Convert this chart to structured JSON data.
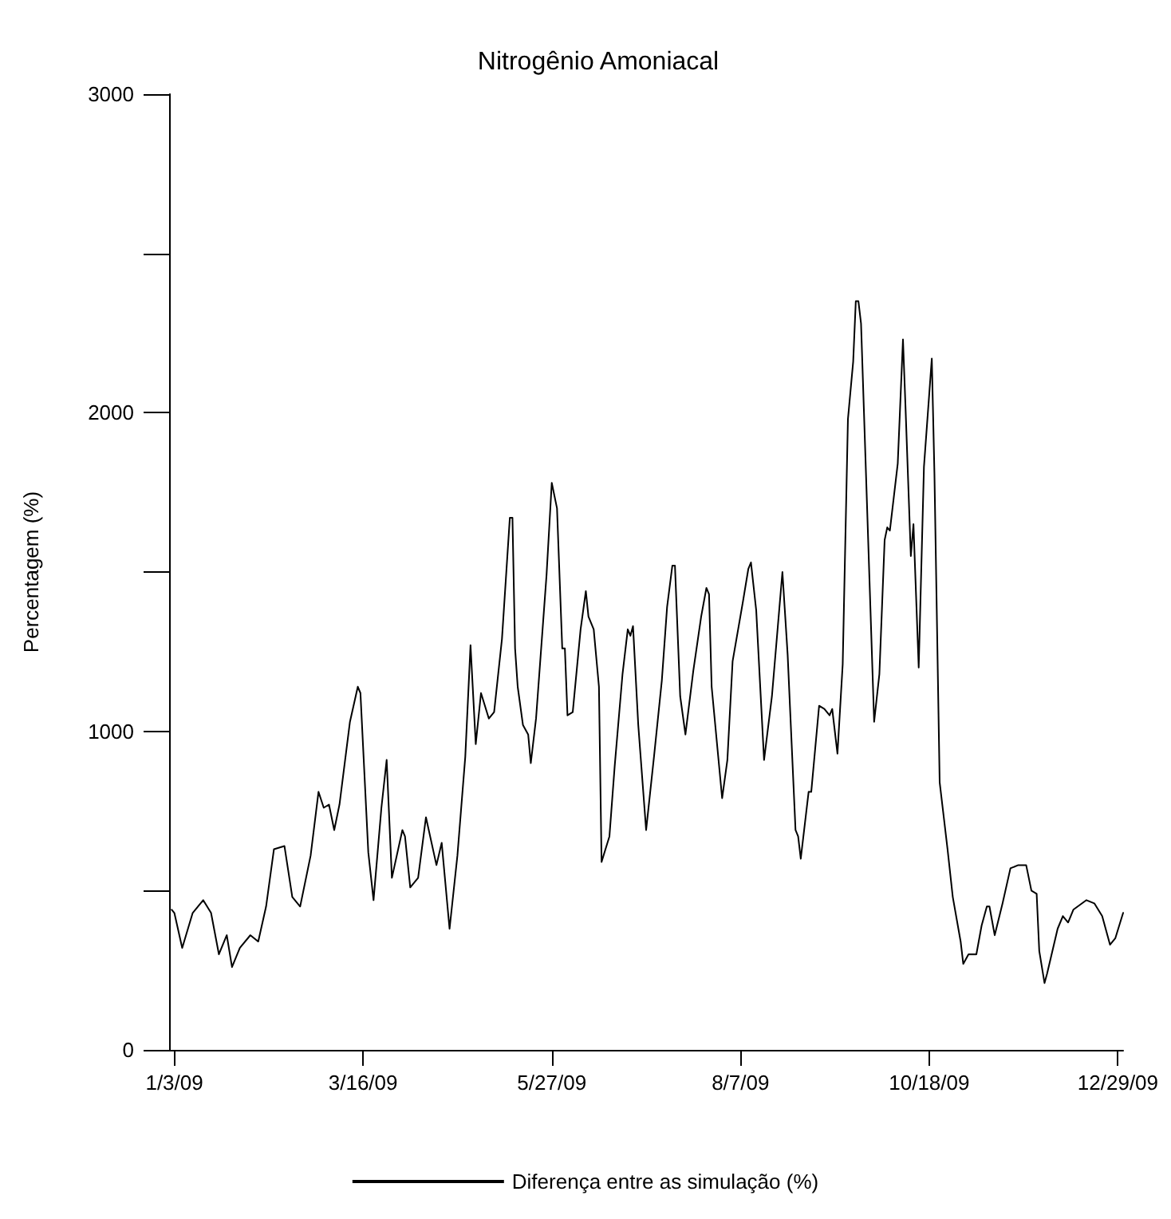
{
  "chart_data": {
    "type": "line",
    "title": "Nitrogênio Amoniacal",
    "ylabel": "Percentagem (%)",
    "x": [
      "2009-01-02",
      "2009-01-03",
      "2009-01-06",
      "2009-01-10",
      "2009-01-14",
      "2009-01-17",
      "2009-01-20",
      "2009-01-23",
      "2009-01-25",
      "2009-01-28",
      "2009-02-01",
      "2009-02-04",
      "2009-02-07",
      "2009-02-10",
      "2009-02-14",
      "2009-02-17",
      "2009-02-20",
      "2009-02-24",
      "2009-02-27",
      "2009-03-01",
      "2009-03-03",
      "2009-03-05",
      "2009-03-07",
      "2009-03-11",
      "2009-03-14",
      "2009-03-15",
      "2009-03-18",
      "2009-03-20",
      "2009-03-23",
      "2009-03-25",
      "2009-03-27",
      "2009-03-31",
      "2009-04-01",
      "2009-04-03",
      "2009-04-06",
      "2009-04-09",
      "2009-04-13",
      "2009-04-15",
      "2009-04-18",
      "2009-04-21",
      "2009-04-24",
      "2009-04-26",
      "2009-04-28",
      "2009-04-30",
      "2009-05-03",
      "2009-05-05",
      "2009-05-08",
      "2009-05-11",
      "2009-05-12",
      "2009-05-13",
      "2009-05-14",
      "2009-05-16",
      "2009-05-18",
      "2009-05-19",
      "2009-05-21",
      "2009-05-25",
      "2009-05-27",
      "2009-05-29",
      "2009-05-31",
      "2009-06-01",
      "2009-06-02",
      "2009-06-04",
      "2009-06-07",
      "2009-06-09",
      "2009-06-10",
      "2009-06-12",
      "2009-06-14",
      "2009-06-15",
      "2009-06-18",
      "2009-06-20",
      "2009-06-23",
      "2009-06-25",
      "2009-06-26",
      "2009-06-27",
      "2009-06-29",
      "2009-07-02",
      "2009-07-05",
      "2009-07-08",
      "2009-07-10",
      "2009-07-12",
      "2009-07-13",
      "2009-07-15",
      "2009-07-17",
      "2009-07-20",
      "2009-07-23",
      "2009-07-25",
      "2009-07-26",
      "2009-07-27",
      "2009-07-31",
      "2009-08-02",
      "2009-08-04",
      "2009-08-08",
      "2009-08-10",
      "2009-08-11",
      "2009-08-13",
      "2009-08-16",
      "2009-08-19",
      "2009-08-23",
      "2009-08-25",
      "2009-08-28",
      "2009-08-29",
      "2009-08-30",
      "2009-09-02",
      "2009-09-03",
      "2009-09-06",
      "2009-09-08",
      "2009-09-10",
      "2009-09-11",
      "2009-09-13",
      "2009-09-15",
      "2009-09-17",
      "2009-09-19",
      "2009-09-20",
      "2009-09-21",
      "2009-09-22",
      "2009-09-27",
      "2009-09-29",
      "2009-10-01",
      "2009-10-02",
      "2009-10-03",
      "2009-10-06",
      "2009-10-08",
      "2009-10-09",
      "2009-10-11",
      "2009-10-12",
      "2009-10-14",
      "2009-10-16",
      "2009-10-19",
      "2009-10-20",
      "2009-10-22",
      "2009-10-25",
      "2009-10-27",
      "2009-10-30",
      "2009-10-31",
      "2009-11-02",
      "2009-11-05",
      "2009-11-07",
      "2009-11-09",
      "2009-11-10",
      "2009-11-12",
      "2009-11-15",
      "2009-11-18",
      "2009-11-21",
      "2009-11-24",
      "2009-11-26",
      "2009-11-28",
      "2009-11-29",
      "2009-12-01",
      "2009-12-02",
      "2009-12-06",
      "2009-12-08",
      "2009-12-10",
      "2009-12-12",
      "2009-12-17",
      "2009-12-20",
      "2009-12-23",
      "2009-12-26",
      "2009-12-28",
      "2009-12-31"
    ],
    "series": [
      {
        "name": "Diferença entre as simulação (%)",
        "color": "#000000",
        "values": [
          440,
          430,
          320,
          430,
          470,
          430,
          300,
          360,
          260,
          320,
          360,
          340,
          450,
          630,
          640,
          480,
          450,
          610,
          810,
          760,
          770,
          690,
          770,
          1030,
          1140,
          1120,
          620,
          470,
          760,
          910,
          540,
          690,
          670,
          510,
          540,
          730,
          580,
          650,
          380,
          610,
          920,
          1270,
          960,
          1120,
          1040,
          1060,
          1290,
          1670,
          1670,
          1260,
          1140,
          1020,
          990,
          900,
          1040,
          1490,
          1780,
          1700,
          1260,
          1260,
          1050,
          1060,
          1320,
          1440,
          1360,
          1320,
          1140,
          590,
          670,
          890,
          1180,
          1320,
          1300,
          1330,
          1020,
          690,
          920,
          1160,
          1390,
          1520,
          1520,
          1110,
          990,
          1190,
          1360,
          1450,
          1430,
          1140,
          790,
          910,
          1220,
          1410,
          1510,
          1530,
          1380,
          910,
          1110,
          1500,
          1240,
          690,
          670,
          600,
          810,
          810,
          1080,
          1070,
          1050,
          1070,
          930,
          1210,
          1980,
          2160,
          2350,
          2350,
          2280,
          1030,
          1180,
          1600,
          1640,
          1630,
          1840,
          2230,
          2010,
          1550,
          1650,
          1200,
          1830,
          2170,
          1810,
          840,
          630,
          480,
          340,
          270,
          300,
          300,
          390,
          450,
          450,
          360,
          460,
          570,
          580,
          580,
          500,
          490,
          310,
          210,
          240,
          380,
          420,
          400,
          440,
          470,
          460,
          420,
          330,
          350,
          430
        ]
      }
    ],
    "xlim": [
      "2009-01-01",
      "2009-12-31"
    ],
    "xticks": [
      {
        "value": "2009-01-03",
        "label": "1/3/09"
      },
      {
        "value": "2009-03-16",
        "label": "3/16/09"
      },
      {
        "value": "2009-05-27",
        "label": "5/27/09"
      },
      {
        "value": "2009-08-07",
        "label": "8/7/09"
      },
      {
        "value": "2009-10-18",
        "label": "10/18/09"
      },
      {
        "value": "2009-12-29",
        "label": "12/29/09"
      }
    ],
    "ylim": [
      0,
      3000
    ],
    "yticks": [
      0,
      {
        "value": 500,
        "label": null
      },
      1000,
      {
        "value": 1500,
        "label": null
      },
      2000,
      {
        "value": 2500,
        "label": null
      },
      3000
    ],
    "grid": false,
    "legend": "bottom",
    "marker": "none",
    "line_style": "solid"
  }
}
